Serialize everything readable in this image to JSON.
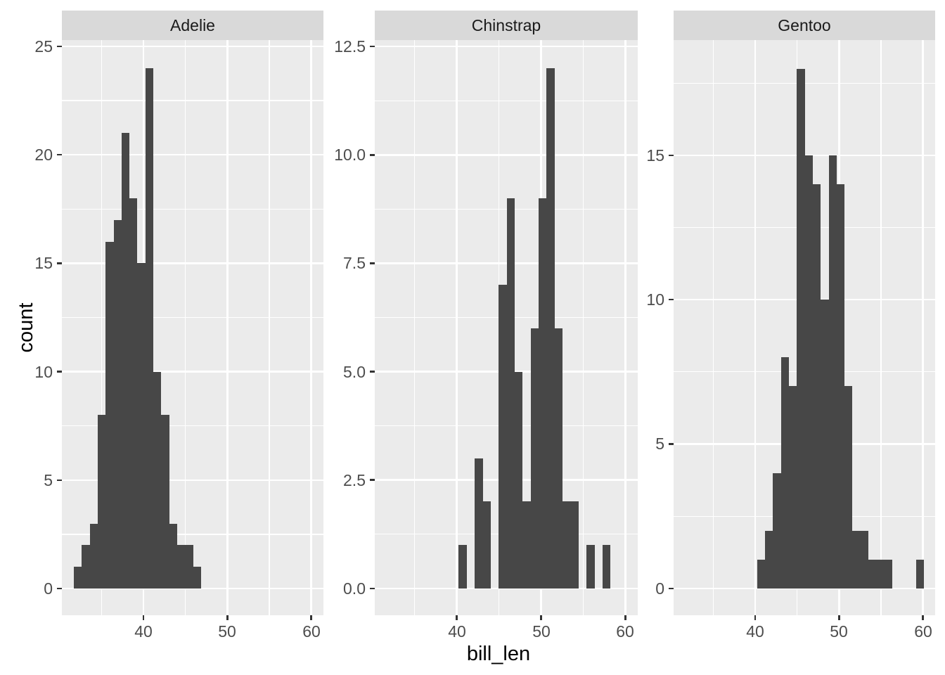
{
  "chart_data": {
    "type": "bar",
    "subtype": "faceted-histogram",
    "title": "",
    "xlabel": "bill_len",
    "ylabel": "count",
    "bin_width": 0.9483,
    "x_domain": [
      30.27,
      61.46
    ],
    "x_major_ticks": [
      40,
      50,
      60
    ],
    "x_tick_labels": [
      "40",
      "50",
      "60"
    ],
    "x_minor_ticks": [
      35,
      45,
      55
    ],
    "grid": "major-and-minor",
    "legend": "none",
    "colors": {
      "bar_fill": "#474747",
      "panel_background": "#EBEBEB",
      "strip_background": "#D9D9D9",
      "gridline": "#FFFFFF",
      "tick_mark": "#333333",
      "tick_label": "#4D4D4D",
      "axis_title": "#000000",
      "strip_text": "#1A1A1A"
    },
    "facets": [
      {
        "label": "Adelie",
        "ylim": [
          -1.23,
          25.29
        ],
        "y_tick_values": [
          0,
          5,
          10,
          15,
          20,
          25
        ],
        "y_tick_labels": [
          "0",
          "5",
          "10",
          "15",
          "20",
          "25"
        ],
        "y_minor_ticks": [
          2.5,
          7.5,
          12.5,
          17.5,
          22.5
        ],
        "total_count": 151,
        "bars": [
          {
            "x0": 31.693,
            "count": 1
          },
          {
            "x0": 32.641,
            "count": 2
          },
          {
            "x0": 33.59,
            "count": 3
          },
          {
            "x0": 34.538,
            "count": 8
          },
          {
            "x0": 35.486,
            "count": 16
          },
          {
            "x0": 36.434,
            "count": 17
          },
          {
            "x0": 37.383,
            "count": 21
          },
          {
            "x0": 38.331,
            "count": 18
          },
          {
            "x0": 39.279,
            "count": 15
          },
          {
            "x0": 40.227,
            "count": 24
          },
          {
            "x0": 41.176,
            "count": 10
          },
          {
            "x0": 42.124,
            "count": 8
          },
          {
            "x0": 43.072,
            "count": 3
          },
          {
            "x0": 44.021,
            "count": 2
          },
          {
            "x0": 44.969,
            "count": 2
          },
          {
            "x0": 45.917,
            "count": 1
          }
        ]
      },
      {
        "label": "Chinstrap",
        "ylim": [
          -0.62,
          12.65
        ],
        "y_tick_values": [
          0,
          2.5,
          5,
          7.5,
          10,
          12.5
        ],
        "y_tick_labels": [
          "0.0",
          "2.5",
          "5.0",
          "7.5",
          "10.0",
          "12.5"
        ],
        "y_minor_ticks": [
          1.25,
          3.75,
          6.25,
          8.75,
          11.25
        ],
        "total_count": 68,
        "bars": [
          {
            "x0": 40.227,
            "count": 1
          },
          {
            "x0": 42.124,
            "count": 3
          },
          {
            "x0": 43.072,
            "count": 2
          },
          {
            "x0": 44.969,
            "count": 7
          },
          {
            "x0": 45.917,
            "count": 9
          },
          {
            "x0": 46.865,
            "count": 5
          },
          {
            "x0": 47.814,
            "count": 2
          },
          {
            "x0": 48.762,
            "count": 6
          },
          {
            "x0": 49.71,
            "count": 9
          },
          {
            "x0": 50.659,
            "count": 12
          },
          {
            "x0": 51.607,
            "count": 6
          },
          {
            "x0": 52.555,
            "count": 2
          },
          {
            "x0": 53.503,
            "count": 2
          },
          {
            "x0": 55.4,
            "count": 1
          },
          {
            "x0": 57.297,
            "count": 1
          }
        ]
      },
      {
        "label": "Gentoo",
        "ylim": [
          -0.93,
          18.99
        ],
        "y_tick_values": [
          0,
          5,
          10,
          15
        ],
        "y_tick_labels": [
          "0",
          "5",
          "10",
          "15"
        ],
        "y_minor_ticks": [
          2.5,
          7.5,
          12.5,
          17.5
        ],
        "total_count": 123,
        "bars": [
          {
            "x0": 40.227,
            "count": 1
          },
          {
            "x0": 41.176,
            "count": 2
          },
          {
            "x0": 42.124,
            "count": 4
          },
          {
            "x0": 43.072,
            "count": 8
          },
          {
            "x0": 44.021,
            "count": 7
          },
          {
            "x0": 44.969,
            "count": 18
          },
          {
            "x0": 45.917,
            "count": 15
          },
          {
            "x0": 46.865,
            "count": 14
          },
          {
            "x0": 47.814,
            "count": 10
          },
          {
            "x0": 48.762,
            "count": 15
          },
          {
            "x0": 49.71,
            "count": 14
          },
          {
            "x0": 50.659,
            "count": 7
          },
          {
            "x0": 51.607,
            "count": 2
          },
          {
            "x0": 52.555,
            "count": 2
          },
          {
            "x0": 53.503,
            "count": 1
          },
          {
            "x0": 54.452,
            "count": 1
          },
          {
            "x0": 55.4,
            "count": 1
          },
          {
            "x0": 59.193,
            "count": 1
          }
        ]
      }
    ]
  }
}
